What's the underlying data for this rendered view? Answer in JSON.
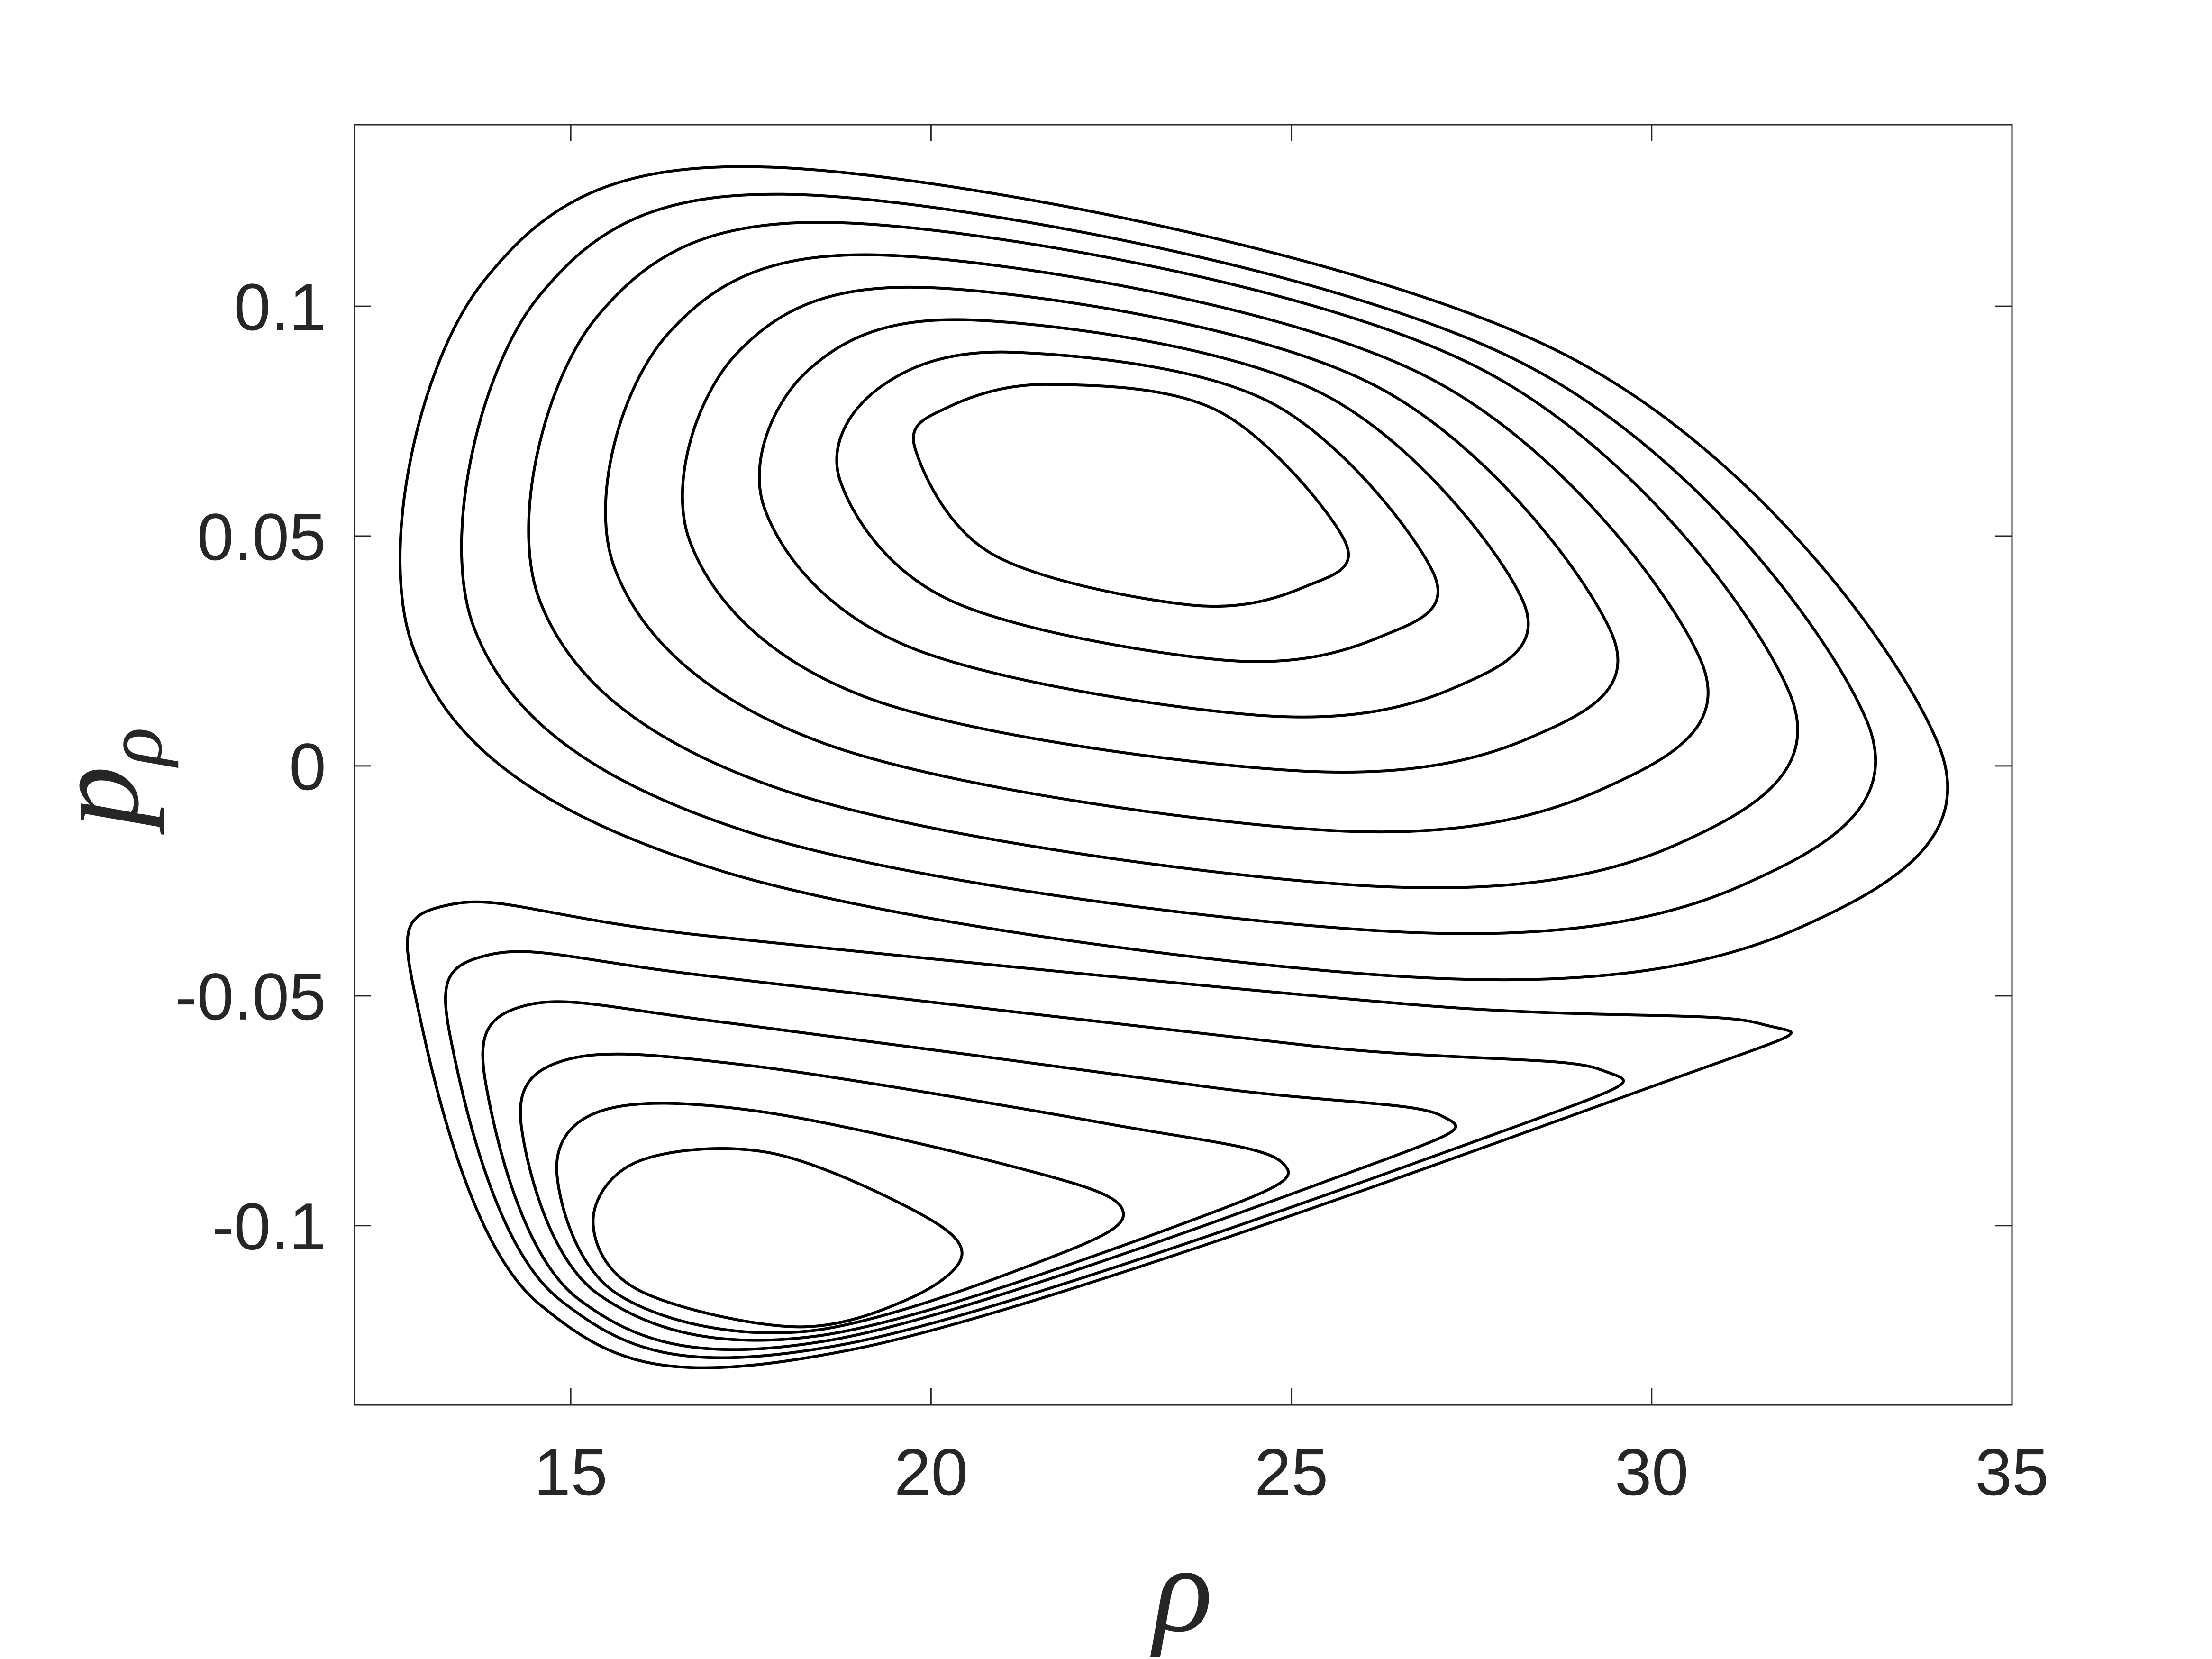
{
  "chart_data": {
    "type": "line",
    "xlabel": "ρ",
    "ylabel": "p",
    "ylabel_subscript": "ρ",
    "xlim": [
      12,
      35
    ],
    "xticks": [
      15,
      20,
      25,
      30,
      35
    ],
    "ylim": [
      -0.139,
      0.1395
    ],
    "yticks": [
      -0.1,
      -0.05,
      0,
      0.05,
      0.1
    ],
    "color": "#000000",
    "closed": true,
    "series": [
      {
        "x": [
          19.78,
          20.23,
          21.65,
          24.01,
          25.74,
          25.19,
          23.61,
          20.86
        ],
        "y": [
          0.069,
          0.078,
          0.083,
          0.077,
          0.049,
          0.039,
          0.035,
          0.046
        ]
      },
      {
        "x": [
          18.74,
          19.26,
          21.12,
          24.72,
          26.97,
          26.22,
          24.08,
          20.27
        ],
        "y": [
          0.062,
          0.082,
          0.09,
          0.079,
          0.042,
          0.028,
          0.023,
          0.036
        ]
      },
      {
        "x": [
          17.69,
          18.29,
          20.58,
          25.43,
          28.21,
          27.26,
          24.56,
          19.68
        ],
        "y": [
          0.056,
          0.086,
          0.097,
          0.081,
          0.036,
          0.017,
          0.011,
          0.026
        ]
      },
      {
        "x": [
          16.65,
          17.32,
          20.05,
          26.13,
          29.44,
          28.29,
          25.03,
          19.09
        ],
        "y": [
          0.049,
          0.09,
          0.104,
          0.083,
          0.029,
          0.006,
          -0.001,
          0.015
        ]
      },
      {
        "x": [
          15.61,
          16.35,
          19.52,
          26.84,
          30.68,
          29.32,
          25.5,
          18.5
        ],
        "y": [
          0.043,
          0.094,
          0.111,
          0.085,
          0.023,
          -0.005,
          -0.014,
          0.005
        ]
      },
      {
        "x": [
          14.57,
          15.38,
          18.99,
          27.55,
          31.91,
          30.36,
          25.97,
          17.9
        ],
        "y": [
          0.036,
          0.098,
          0.118,
          0.087,
          0.016,
          -0.017,
          -0.026,
          -0.005
        ]
      },
      {
        "x": [
          13.66,
          14.55,
          18.53,
          28.16,
          32.98,
          31.25,
          26.38,
          17.39
        ],
        "y": [
          0.03,
          0.102,
          0.124,
          0.088,
          0.01,
          -0.026,
          -0.036,
          -0.014
        ]
      },
      {
        "x": [
          12.83,
          13.77,
          18.1,
          28.73,
          33.97,
          32.08,
          26.76,
          16.92
        ],
        "y": [
          0.025,
          0.105,
          0.13,
          0.09,
          0.005,
          -0.035,
          -0.046,
          -0.022
        ]
      },
      {
        "x": [
          15.31,
          15.94,
          17.71,
          19.68,
          20.43,
          19.68,
          18.1,
          15.94
        ],
        "y": [
          -0.099,
          -0.086,
          -0.084,
          -0.096,
          -0.106,
          -0.116,
          -0.122,
          -0.114
        ]
      },
      {
        "x": [
          14.81,
          15.43,
          17.55,
          21.1,
          22.64,
          21.81,
          18.26,
          15.66
        ],
        "y": [
          -0.089,
          -0.075,
          -0.075,
          -0.087,
          -0.096,
          -0.106,
          -0.123,
          -0.115
        ]
      },
      {
        "x": [
          14.32,
          14.92,
          17.39,
          22.51,
          24.85,
          23.93,
          18.42,
          15.39
        ],
        "y": [
          -0.079,
          -0.064,
          -0.065,
          -0.078,
          -0.086,
          -0.097,
          -0.124,
          -0.115
        ]
      },
      {
        "x": [
          13.82,
          14.4,
          17.24,
          23.93,
          27.07,
          26.06,
          18.57,
          15.11
        ],
        "y": [
          -0.069,
          -0.052,
          -0.056,
          -0.07,
          -0.076,
          -0.087,
          -0.125,
          -0.116
        ]
      },
      {
        "x": [
          13.33,
          13.89,
          17.08,
          25.34,
          29.28,
          28.19,
          18.73,
          14.84
        ],
        "y": [
          -0.059,
          -0.041,
          -0.046,
          -0.061,
          -0.066,
          -0.078,
          -0.126,
          -0.116
        ]
      },
      {
        "x": [
          12.83,
          13.38,
          16.92,
          26.76,
          31.49,
          30.31,
          18.89,
          14.56
        ],
        "y": [
          -0.049,
          -0.03,
          -0.037,
          -0.052,
          -0.056,
          -0.068,
          -0.127,
          -0.117
        ]
      }
    ]
  }
}
